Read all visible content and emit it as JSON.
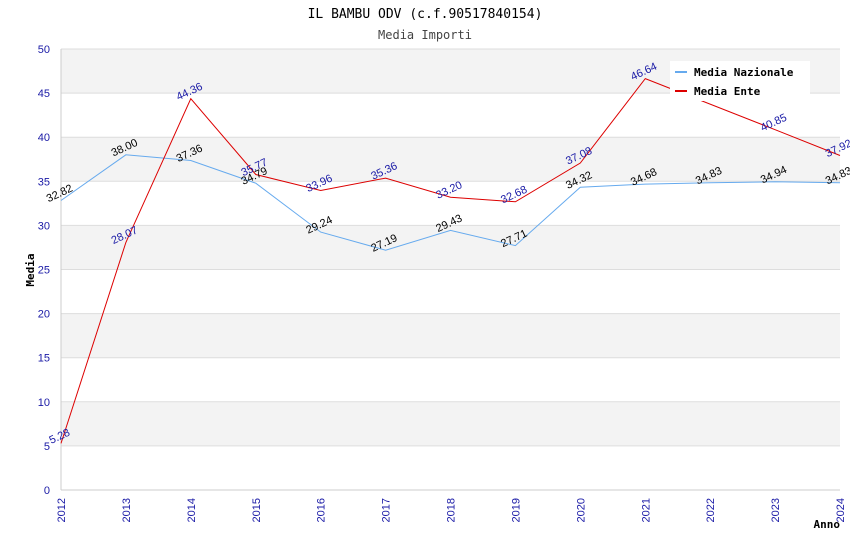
{
  "chart_data": {
    "type": "line",
    "title": "IL BAMBU ODV (c.f.90517840154)",
    "subtitle": "Media Importi",
    "xlabel": "Anno",
    "ylabel": "Media",
    "ylim": [
      0,
      50
    ],
    "yticks": [
      0,
      5,
      10,
      15,
      20,
      25,
      30,
      35,
      40,
      45,
      50
    ],
    "categories": [
      "2012",
      "2013",
      "2014",
      "2015",
      "2016",
      "2017",
      "2018",
      "2019",
      "2020",
      "2021",
      "2022",
      "2023",
      "2024"
    ],
    "legend_position": "top-right",
    "series": [
      {
        "name": "Media Nazionale",
        "color": "#66aaee",
        "label_color": "#000000",
        "values": [
          32.82,
          38.0,
          37.36,
          34.79,
          29.24,
          27.19,
          29.43,
          27.71,
          34.32,
          34.68,
          34.83,
          34.94,
          34.83
        ],
        "labels": [
          "32.82",
          "38.00",
          "37.36",
          "34.79",
          "29.24",
          "27.19",
          "29.43",
          "27.71",
          "34.32",
          "34.68",
          "34.83",
          "34.94",
          "34.83"
        ]
      },
      {
        "name": "Media Ente",
        "color": "#dd0000",
        "label_color": "#1a1aa6",
        "values": [
          5.28,
          28.07,
          44.36,
          35.77,
          33.96,
          35.36,
          33.2,
          32.68,
          37.08,
          46.64,
          null,
          40.85,
          37.92
        ],
        "labels": [
          "5.28",
          "28.07",
          "44.36",
          "35.77",
          "33.96",
          "35.36",
          "33.20",
          "32.68",
          "37.08",
          "46.64",
          "",
          "40.85",
          "37.92"
        ]
      }
    ]
  }
}
